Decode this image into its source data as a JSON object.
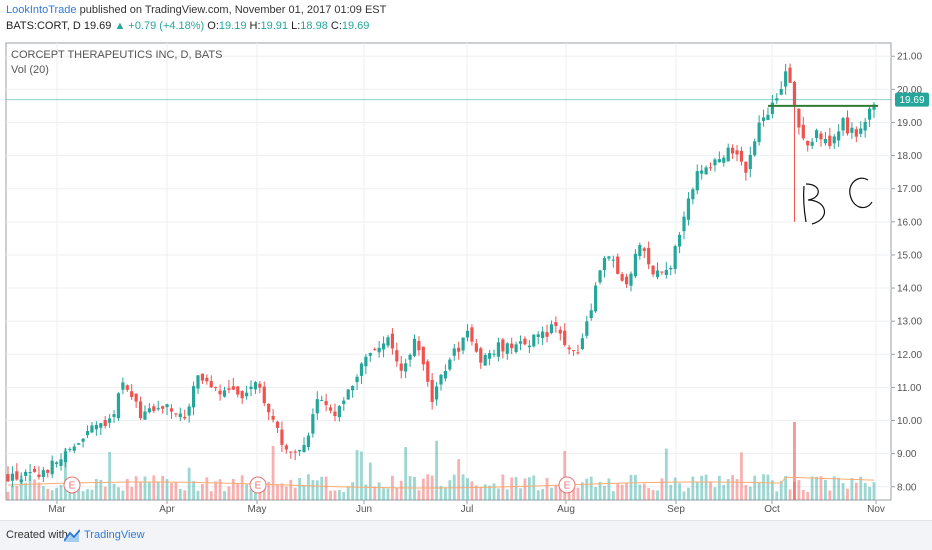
{
  "header": {
    "author": "LookIntoTrade",
    "published_text": "published on TradingView.com, November 01, 2017 01:09 EST",
    "symbol": "BATS:CORT, D",
    "last": "19.69",
    "change_arrow": "▲",
    "change": "+0.79 (+4.18%)",
    "o_label": "O:",
    "o_val": "19.19",
    "h_label": "H:",
    "h_val": "19.91",
    "l_label": "L:",
    "l_val": "18.98",
    "c_label": "C:",
    "c_val": "19.69"
  },
  "footer": {
    "created": "Created with",
    "brand": "TradingView"
  },
  "colors": {
    "up": "#26a69a",
    "down": "#ef5350",
    "volume_ma": "#ffab6e",
    "resistance": "#2e7d32",
    "price_badge": "#26a69a"
  },
  "chart_data": {
    "type": "candlestick",
    "title": "CORCEPT THERAPEUTICS INC, D, BATS",
    "indicator": "Vol (20)",
    "x_ticks": [
      "Mar",
      "Apr",
      "May",
      "Jun",
      "Jul",
      "Aug",
      "Sep",
      "Oct",
      "Nov"
    ],
    "y_ticks": [
      "8.00",
      "9.00",
      "10.00",
      "11.00",
      "12.00",
      "13.00",
      "14.00",
      "15.00",
      "16.00",
      "17.00",
      "18.00",
      "19.00",
      "20.00",
      "21.00"
    ],
    "ylim": [
      7.6,
      21.4
    ],
    "last_price_label": "19.69",
    "earnings_marker": "E",
    "earnings_months": [
      "Mar",
      "May",
      "Aug"
    ],
    "resistance_level": 19.5,
    "grid": true,
    "close_path": [
      [
        0,
        8.3
      ],
      [
        6,
        8.3
      ],
      [
        12,
        8.8
      ],
      [
        18,
        9.6
      ],
      [
        24,
        10.1
      ],
      [
        26,
        11.3
      ],
      [
        30,
        10.1
      ],
      [
        36,
        10.5
      ],
      [
        40,
        10.0
      ],
      [
        43,
        11.4
      ],
      [
        48,
        10.9
      ],
      [
        53,
        10.8
      ],
      [
        56,
        11.1
      ],
      [
        60,
        10.0
      ],
      [
        63,
        9.1
      ],
      [
        67,
        9.2
      ],
      [
        70,
        10.5
      ],
      [
        74,
        10.3
      ],
      [
        78,
        11.2
      ],
      [
        82,
        12.1
      ],
      [
        86,
        12.4
      ],
      [
        89,
        11.5
      ],
      [
        92,
        12.4
      ],
      [
        96,
        10.7
      ],
      [
        100,
        11.8
      ],
      [
        104,
        12.7
      ],
      [
        107,
        11.9
      ],
      [
        111,
        12.2
      ],
      [
        116,
        12.3
      ],
      [
        121,
        12.6
      ],
      [
        124,
        12.9
      ],
      [
        127,
        12.1
      ],
      [
        129,
        12.0
      ],
      [
        133,
        14.0
      ],
      [
        136,
        15.1
      ],
      [
        140,
        14.0
      ],
      [
        143,
        15.4
      ],
      [
        146,
        14.3
      ],
      [
        150,
        14.7
      ],
      [
        153,
        16.3
      ],
      [
        156,
        17.5
      ],
      [
        160,
        17.8
      ],
      [
        163,
        18.2
      ],
      [
        167,
        17.6
      ],
      [
        170,
        19.0
      ],
      [
        174,
        19.6
      ],
      [
        176,
        20.5
      ],
      [
        178,
        19.6
      ],
      [
        180,
        18.4
      ],
      [
        183,
        18.6
      ],
      [
        186,
        18.3
      ],
      [
        189,
        19.0
      ],
      [
        192,
        18.5
      ],
      [
        194,
        18.9
      ],
      [
        196,
        19.69
      ]
    ],
    "volume_ma_level": 0.22
  }
}
